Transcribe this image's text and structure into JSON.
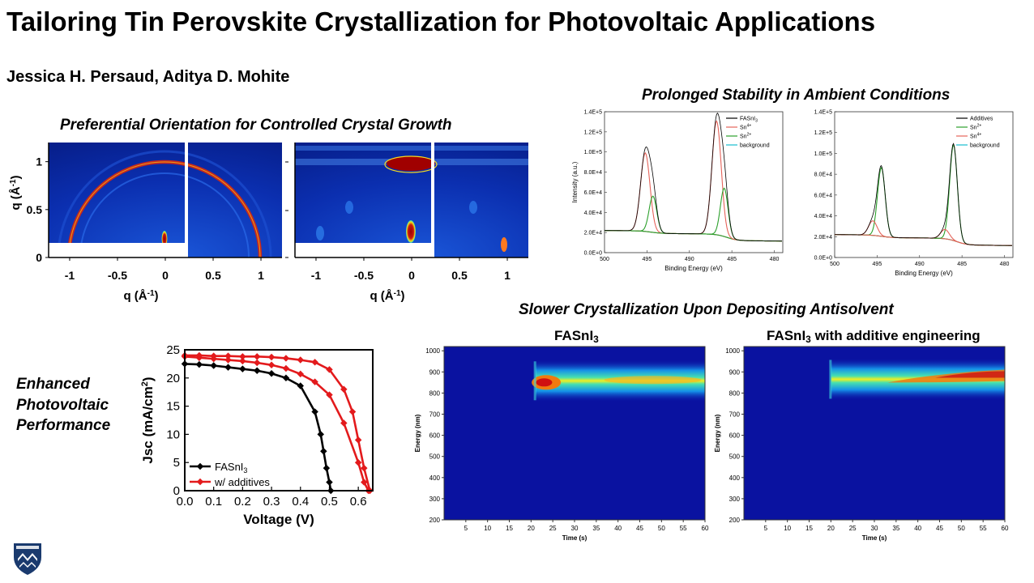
{
  "title": "Tailoring Tin Perovskite Crystallization for Photovoltaic Applications",
  "authors": "Jessica H. Persaud, Aditya D. Mohite",
  "sections": {
    "orientation": "Preferential Orientation for Controlled Crystal Growth",
    "stability": "Prolonged Stability in Ambient Conditions",
    "crystallization": "Slower Crystallization Upon Depositing Antisolvent",
    "performance": [
      "Enhanced",
      "Photovoltaic",
      "Performance"
    ]
  },
  "giwaxs": {
    "xticks": [
      "-1",
      "-0.5",
      "0",
      "0.5",
      "1"
    ],
    "yticks": [
      "0",
      "0.5",
      "1"
    ],
    "ylabel": "q (Å",
    "ylabel_sup": "-1",
    "xlabel": "q (Å",
    "xlabel_sup": "-1",
    "colors": {
      "background": "#0a2aa8",
      "ring": "#c8281e",
      "peak": "#a00000"
    }
  },
  "chart_data": [
    {
      "type": "line",
      "xlabel": "Binding Energy (eV)",
      "ylabel": "Intensity (a.u.)",
      "xlim": [
        500,
        479
      ],
      "ylim": [
        0,
        140000
      ],
      "xticks": [
        "500",
        "495",
        "490",
        "485",
        "480"
      ],
      "yticks": [
        "0.0E+0",
        "2.0E+4",
        "4.0E+4",
        "6.0E+4",
        "8.0E+4",
        "1.0E+5",
        "1.2E+5",
        "1.4E+5"
      ],
      "legend": [
        "FASnI3",
        "Sn4+",
        "Sn2+",
        "background"
      ],
      "legend_display": [
        {
          "base": "FASnI",
          "sup": "",
          "sub": "3"
        },
        {
          "base": "Sn",
          "sup": "4+",
          "sub": ""
        },
        {
          "base": "Sn",
          "sup": "2+",
          "sub": ""
        },
        {
          "base": "background",
          "sup": "",
          "sub": ""
        }
      ],
      "legend_position": "top-right",
      "colors": [
        "#000000",
        "#e5635a",
        "#2ca02c",
        "#17becf"
      ]
    },
    {
      "type": "line",
      "xlabel": "Binding Energy (eV)",
      "ylabel": "",
      "xlim": [
        500,
        479
      ],
      "ylim": [
        0,
        140000
      ],
      "xticks": [
        "500",
        "495",
        "490",
        "485",
        "480"
      ],
      "yticks": [
        "0.0E+0",
        "2.0E+4",
        "4.0E+4",
        "6.0E+4",
        "8.0E+4",
        "1.0E+5",
        "1.2E+5",
        "1.4E+5"
      ],
      "legend": [
        "Additives",
        "Sn2+",
        "Sn4+",
        "background"
      ],
      "legend_display": [
        {
          "base": "Additives",
          "sup": "",
          "sub": ""
        },
        {
          "base": "Sn",
          "sup": "2+",
          "sub": ""
        },
        {
          "base": "Sn",
          "sup": "4+",
          "sub": ""
        },
        {
          "base": "background",
          "sup": "",
          "sub": ""
        }
      ],
      "legend_position": "top-right",
      "colors": [
        "#000000",
        "#2ca02c",
        "#e5635a",
        "#17becf"
      ]
    },
    {
      "type": "line",
      "xlabel": "Voltage (V)",
      "ylabel": "Jsc (mA/cm",
      "ylabel_sup": "2",
      "xlim": [
        0,
        0.65
      ],
      "ylim": [
        0,
        25
      ],
      "xticks": [
        "0.0",
        "0.1",
        "0.2",
        "0.3",
        "0.4",
        "0.5",
        "0.6"
      ],
      "yticks": [
        "0",
        "5",
        "10",
        "15",
        "20",
        "25"
      ],
      "legend_position": "bottom-left",
      "series": [
        {
          "name": "FASnI3",
          "legend_base": "FASnI",
          "legend_sub": "3",
          "color": "#000000",
          "x": [
            0,
            0.05,
            0.1,
            0.15,
            0.2,
            0.25,
            0.3,
            0.35,
            0.4,
            0.45,
            0.47,
            0.48,
            0.49,
            0.5,
            0.505
          ],
          "y": [
            22.5,
            22.4,
            22.2,
            21.9,
            21.6,
            21.3,
            20.8,
            20.0,
            18.6,
            14.0,
            10.0,
            7.0,
            4.0,
            1.5,
            0
          ]
        },
        {
          "name": "w/ additives",
          "color": "#e31a1c",
          "x": [
            0,
            0.05,
            0.1,
            0.15,
            0.2,
            0.25,
            0.3,
            0.35,
            0.4,
            0.45,
            0.5,
            0.55,
            0.6,
            0.62,
            0.635
          ],
          "y": [
            23.8,
            23.6,
            23.4,
            23.2,
            23.0,
            22.7,
            22.3,
            21.7,
            20.7,
            19.3,
            17.0,
            12.0,
            5.0,
            1.5,
            0
          ]
        },
        {
          "name": "",
          "color": "#e31a1c",
          "x": [
            0,
            0.05,
            0.1,
            0.15,
            0.2,
            0.25,
            0.3,
            0.35,
            0.4,
            0.45,
            0.5,
            0.55,
            0.58,
            0.6,
            0.62,
            0.64
          ],
          "y": [
            24.0,
            24.0,
            23.9,
            23.9,
            23.8,
            23.8,
            23.7,
            23.5,
            23.2,
            22.8,
            21.5,
            18.0,
            14.0,
            9.0,
            4.0,
            0
          ]
        }
      ]
    },
    {
      "type": "heatmap",
      "title_base": "FASnI",
      "title_sub": "3",
      "xlabel": "Time (s)",
      "ylabel": "Energy (nm)",
      "xlim": [
        0,
        60
      ],
      "ylim": [
        200,
        1020
      ],
      "xticks": [
        "5",
        "10",
        "15",
        "20",
        "25",
        "30",
        "35",
        "40",
        "45",
        "50",
        "55",
        "60"
      ],
      "yticks": [
        "200",
        "300",
        "400",
        "500",
        "600",
        "700",
        "800",
        "900",
        "1000"
      ],
      "onset_time_s": 21,
      "band_center_nm": 858
    },
    {
      "type": "heatmap",
      "title_base": "FASnI",
      "title_sub": "3",
      "title_suffix": " with additive engineering",
      "xlabel": "Time (s)",
      "ylabel": "Energy (nm)",
      "xlim": [
        0,
        60
      ],
      "ylim": [
        200,
        1020
      ],
      "xticks": [
        "5",
        "10",
        "15",
        "20",
        "25",
        "30",
        "35",
        "40",
        "45",
        "50",
        "55",
        "60"
      ],
      "yticks": [
        "200",
        "300",
        "400",
        "500",
        "600",
        "700",
        "800",
        "900",
        "1000"
      ],
      "onset_time_s": 20,
      "band_center_nm": 865
    }
  ],
  "logo": {
    "name": "shield-logo",
    "color": "#1a3a6e"
  }
}
